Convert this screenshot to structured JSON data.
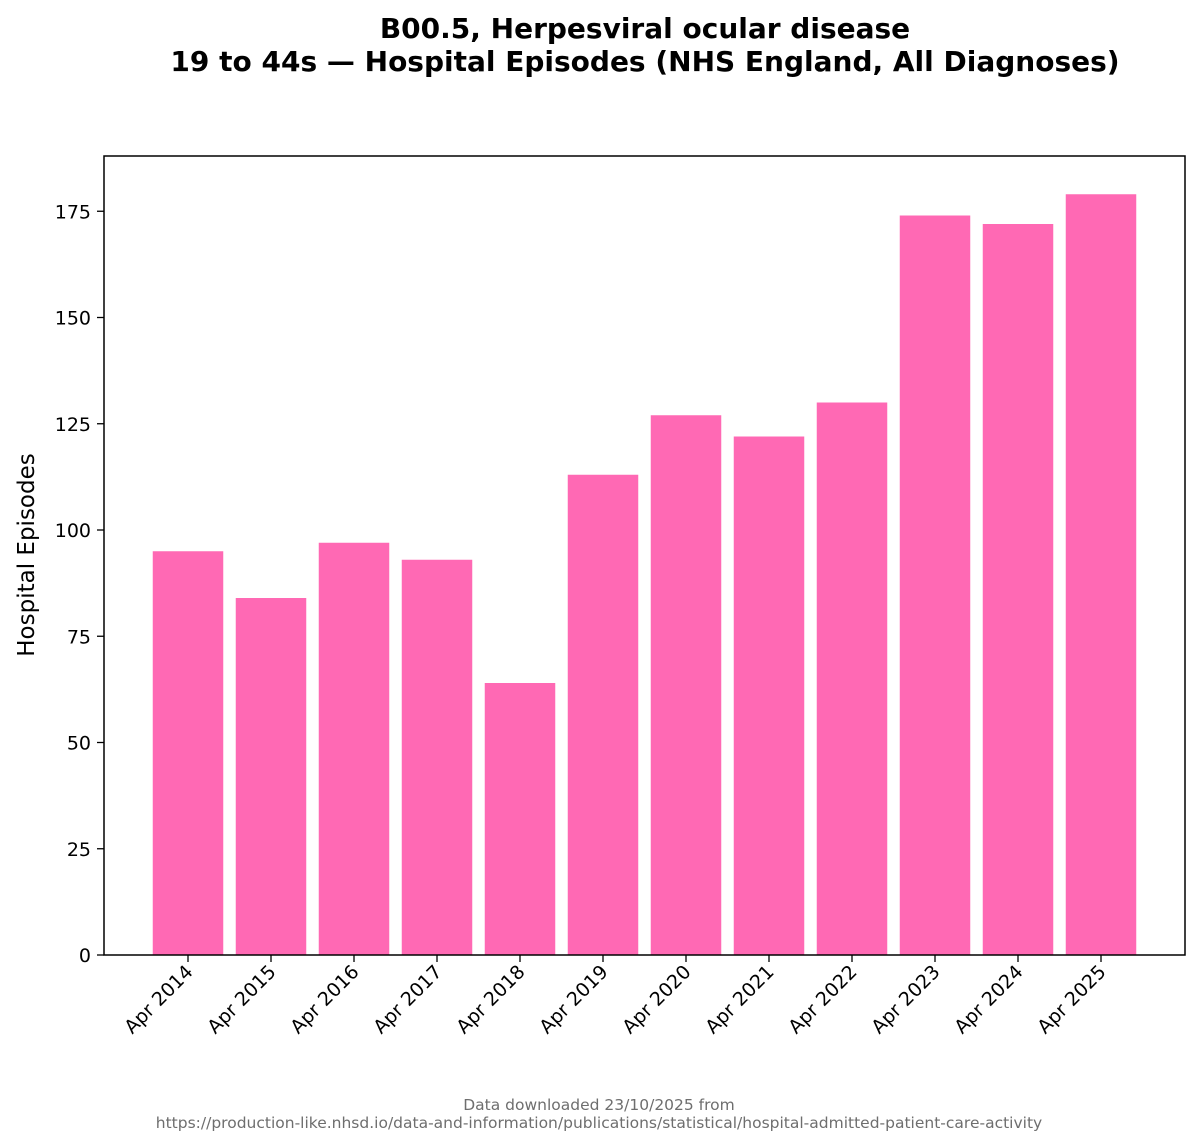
{
  "chart_data": {
    "type": "bar",
    "title_lines": [
      "B00.5, Herpesviral ocular disease",
      "19 to 44s — Hospital Episodes (NHS England, All Diagnoses)"
    ],
    "xlabel": "",
    "ylabel": "Hospital Episodes",
    "categories": [
      "Apr 2014",
      "Apr 2015",
      "Apr 2016",
      "Apr 2017",
      "Apr 2018",
      "Apr 2019",
      "Apr 2020",
      "Apr 2021",
      "Apr 2022",
      "Apr 2023",
      "Apr 2024",
      "Apr 2025"
    ],
    "values": [
      95,
      84,
      97,
      93,
      64,
      113,
      127,
      122,
      130,
      174,
      172,
      179
    ],
    "ylim": [
      0,
      188
    ],
    "yticks": [
      0,
      25,
      50,
      75,
      100,
      125,
      150,
      175
    ],
    "bar_color": "#ff69b4",
    "grid": false,
    "footer_lines": [
      "Data downloaded 23/10/2025 from",
      "https://production-like.nhsd.io/data-and-information/publications/statistical/hospital-admitted-patient-care-activity"
    ]
  }
}
